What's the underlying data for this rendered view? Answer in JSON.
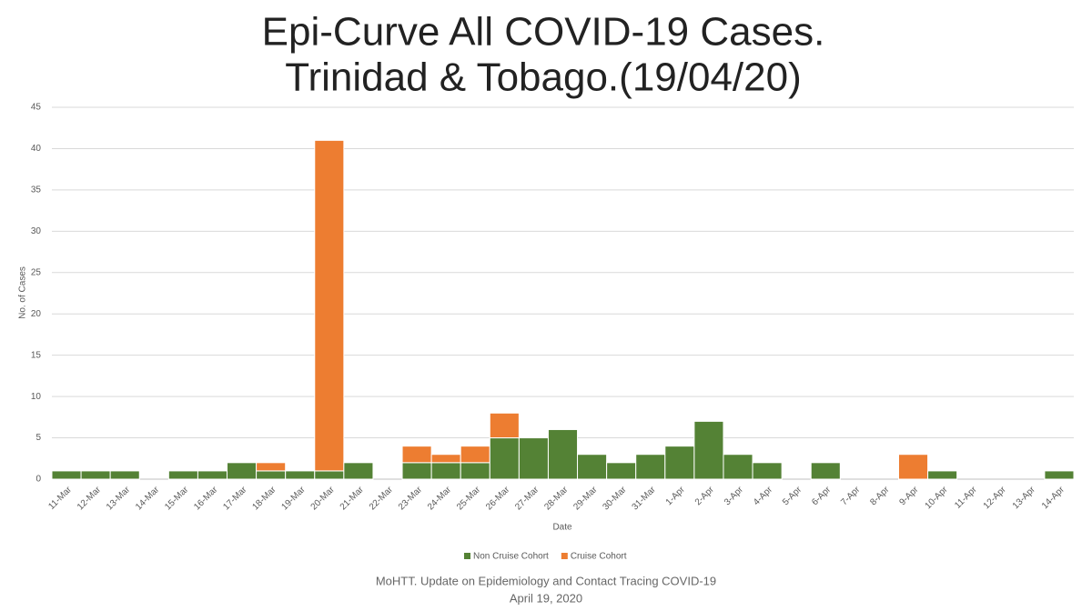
{
  "chart_data": {
    "type": "stacked_bar",
    "title": [
      "Epi-Curve All COVID-19 Cases.",
      "Trinidad & Tobago.(19/04/20)"
    ],
    "x_label": "Date",
    "y_label": "No. of Cases",
    "categories": [
      "11-Mar",
      "12-Mar",
      "13-Mar",
      "14-Mar",
      "15-Mar",
      "16-Mar",
      "17-Mar",
      "18-Mar",
      "19-Mar",
      "20-Mar",
      "21-Mar",
      "22-Mar",
      "23-Mar",
      "24-Mar",
      "25-Mar",
      "26-Mar",
      "27-Mar",
      "28-Mar",
      "29-Mar",
      "30-Mar",
      "31-Mar",
      "1-Apr",
      "2-Apr",
      "3-Apr",
      "4-Apr",
      "5-Apr",
      "6-Apr",
      "7-Apr",
      "8-Apr",
      "9-Apr",
      "10-Apr",
      "11-Apr",
      "12-Apr",
      "13-Apr",
      "14-Apr"
    ],
    "series": [
      {
        "name": "Non Cruise Cohort",
        "color": "#548235",
        "values": [
          1,
          1,
          1,
          0,
          1,
          1,
          2,
          1,
          1,
          1,
          2,
          0,
          2,
          2,
          2,
          5,
          5,
          6,
          3,
          2,
          3,
          4,
          7,
          3,
          2,
          0,
          2,
          0,
          0,
          0,
          1,
          0,
          0,
          0,
          1
        ]
      },
      {
        "name": "Cruise Cohort",
        "color": "#ed7d31",
        "values": [
          0,
          0,
          0,
          0,
          0,
          0,
          0,
          1,
          0,
          40,
          0,
          0,
          2,
          1,
          2,
          3,
          0,
          0,
          0,
          0,
          0,
          0,
          0,
          0,
          0,
          0,
          0,
          0,
          0,
          3,
          0,
          0,
          0,
          0,
          0
        ]
      }
    ],
    "ylim": [
      0,
      45
    ],
    "yticks": [
      0,
      5,
      10,
      15,
      20,
      25,
      30,
      35,
      40,
      45
    ],
    "grid": true,
    "legend": "bottom",
    "footer": [
      "MoHTT. Update on Epidemiology and Contact Tracing COVID-19",
      "April 19, 2020"
    ]
  }
}
